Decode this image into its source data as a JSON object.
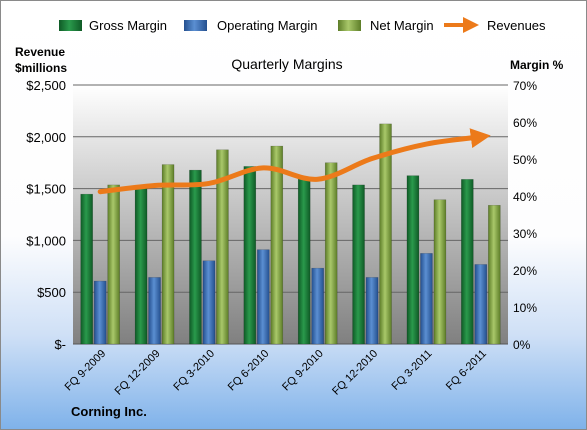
{
  "chart_data": {
    "type": "bar",
    "title": "Quarterly Margins",
    "categories": [
      "FQ 9-2009",
      "FQ 12-2009",
      "FQ 3-2010",
      "FQ 6-2010",
      "FQ 9-2010",
      "FQ 12-2010",
      "FQ 3-2011",
      "FQ 6-2011"
    ],
    "series": [
      {
        "name": "Gross Margin",
        "axis": "right",
        "values": [
          40.5,
          42.5,
          47.0,
          48.0,
          45.0,
          43.0,
          45.5,
          44.5
        ],
        "color": "#1f7a3a"
      },
      {
        "name": "Operating Margin",
        "axis": "right",
        "values": [
          17.0,
          18.0,
          22.5,
          25.5,
          20.5,
          18.0,
          24.5,
          21.5
        ],
        "color": "#3a6db5"
      },
      {
        "name": "Net Margin",
        "axis": "right",
        "values": [
          43.0,
          48.5,
          52.5,
          53.5,
          49.0,
          59.5,
          39.0,
          37.5
        ],
        "color": "#86a848"
      },
      {
        "name": "Revenues",
        "type": "line",
        "axis": "left",
        "values": [
          1470,
          1530,
          1550,
          1700,
          1590,
          1790,
          1930,
          2000
        ],
        "color": "#ec7a1a"
      }
    ],
    "y_left": {
      "label_lines": [
        "Revenue",
        "$millions"
      ],
      "ticks": [
        "$-",
        "$500",
        "$1,000",
        "$1,500",
        "$2,000",
        "$2,500"
      ],
      "range": [
        0,
        2500
      ]
    },
    "y_right": {
      "label": "Margin %",
      "ticks": [
        "0%",
        "10%",
        "20%",
        "30%",
        "40%",
        "50%",
        "60%",
        "70%"
      ],
      "range": [
        0,
        70
      ]
    },
    "grid": true,
    "legend_position": "top"
  },
  "footer": {
    "company": "Corning Inc."
  }
}
